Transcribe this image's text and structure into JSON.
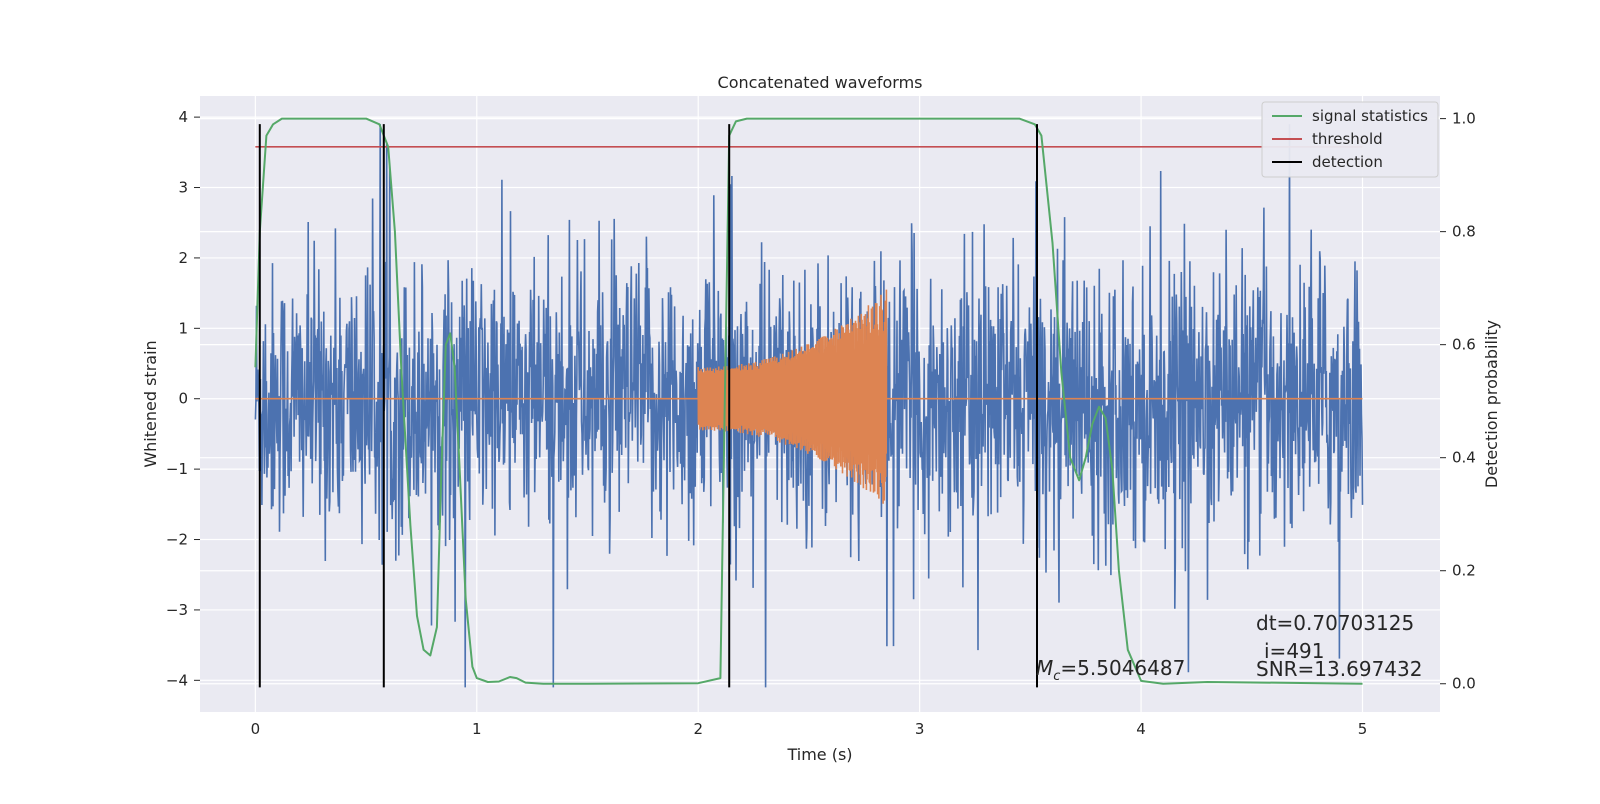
{
  "chart_data": {
    "type": "line",
    "title": "Concatenated waveforms",
    "xlabel": "Time (s)",
    "ylabel_left": "Whitened strain",
    "ylabel_right": "Detection probability",
    "xlim": [
      -0.25,
      5.35
    ],
    "ylim_left": [
      -4.45,
      4.3
    ],
    "ylim_right": [
      -0.05,
      1.04
    ],
    "xticks": [
      0,
      1,
      2,
      3,
      4,
      5
    ],
    "yticks_left": [
      -4,
      -3,
      -2,
      -1,
      0,
      1,
      2,
      3,
      4
    ],
    "yticks_right": [
      0.0,
      0.2,
      0.4,
      0.6,
      0.8,
      1.0
    ],
    "grid": true,
    "legend_placement": "top-right",
    "legend": [
      "signal statistics",
      "threshold",
      "detection"
    ],
    "series": [
      {
        "name": "strain",
        "color": "#4c72b0",
        "axis": "left",
        "description_values": {
          "x_start": 0.0,
          "x_end": 5.0,
          "approx_min": -4.1,
          "approx_max": 3.9
        }
      },
      {
        "name": "template",
        "color": "#dd8452",
        "axis": "left",
        "chirp_start": 2.0,
        "chirp_end": 2.85,
        "amplitude_start": 0.45,
        "amplitude_end": 1.55
      },
      {
        "name": "signal statistics",
        "color": "#55a868",
        "axis": "right",
        "x": [
          0.0,
          0.02,
          0.05,
          0.08,
          0.12,
          0.2,
          0.5,
          0.56,
          0.6,
          0.63,
          0.66,
          0.7,
          0.73,
          0.76,
          0.79,
          0.82,
          0.84,
          0.86,
          0.88,
          0.9,
          0.92,
          0.95,
          0.98,
          1.0,
          1.05,
          1.1,
          1.15,
          1.18,
          1.22,
          1.3,
          1.5,
          2.0,
          2.1,
          2.12,
          2.14,
          2.17,
          2.22,
          2.3,
          3.0,
          3.45,
          3.52,
          3.55,
          3.6,
          3.64,
          3.68,
          3.72,
          3.75,
          3.78,
          3.81,
          3.84,
          3.87,
          3.9,
          3.94,
          4.0,
          4.1,
          4.3,
          5.0
        ],
        "y": [
          0.56,
          0.8,
          0.97,
          0.99,
          1.0,
          1.0,
          1.0,
          0.99,
          0.95,
          0.8,
          0.55,
          0.28,
          0.12,
          0.06,
          0.05,
          0.1,
          0.38,
          0.6,
          0.62,
          0.56,
          0.4,
          0.15,
          0.03,
          0.01,
          0.003,
          0.004,
          0.012,
          0.01,
          0.002,
          0.0,
          0.0,
          0.001,
          0.01,
          0.5,
          0.97,
          0.995,
          1.0,
          1.0,
          1.0,
          1.0,
          0.99,
          0.97,
          0.78,
          0.55,
          0.4,
          0.36,
          0.4,
          0.46,
          0.49,
          0.47,
          0.38,
          0.2,
          0.06,
          0.005,
          0.0,
          0.003,
          0.0
        ]
      },
      {
        "name": "threshold",
        "color": "#c44e52",
        "axis": "right",
        "x": [
          0.0,
          5.0
        ],
        "y": [
          0.95,
          0.95
        ]
      },
      {
        "name": "detection",
        "color": "#000000",
        "axis": "left",
        "x": [
          0.02,
          0.58,
          2.14,
          3.53
        ],
        "y_range": [
          -4.1,
          3.9
        ]
      }
    ],
    "annotations": {
      "dt": "dt=0.70703125",
      "i": "i=491",
      "snr": "SNR=13.697432",
      "mc_value": "=5.5046487",
      "mc_symbol": "M",
      "mc_subscript": "c"
    }
  }
}
